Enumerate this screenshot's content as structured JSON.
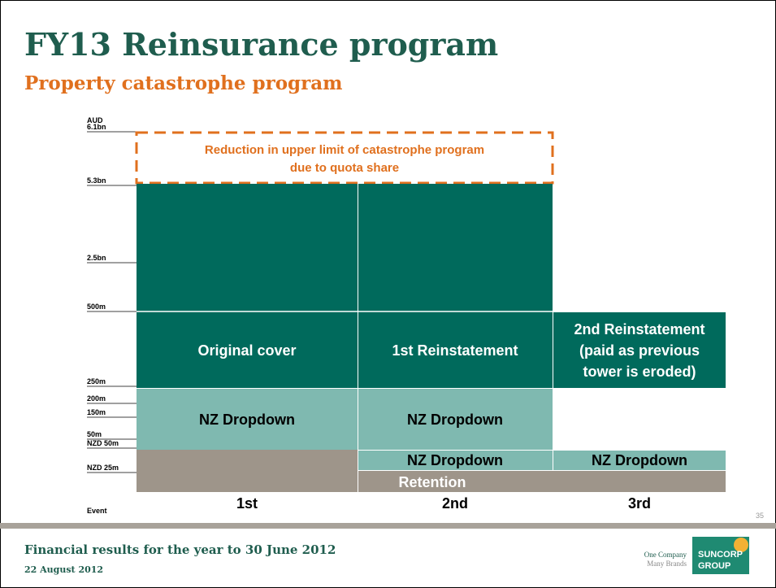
{
  "header": {
    "title": "FY13 Reinsurance program",
    "subtitle": "Property catastrophe program"
  },
  "axis": {
    "unit": "AUD",
    "labels": [
      "6.1bn",
      "5.3bn",
      "2.5bn",
      "500m",
      "250m",
      "200m",
      "150m",
      "50m",
      "NZD 50m",
      "NZD 25m"
    ],
    "event": "Event"
  },
  "callout": {
    "lines": [
      "Reduction in upper limit of catastrophe program",
      "due to quota share"
    ]
  },
  "blocks": {
    "original_cover": "Original cover",
    "first_reinstatement": "1st Reinstatement",
    "second_reinstatement": [
      "2nd Reinstatement",
      "(paid as previous",
      "tower is eroded)"
    ],
    "nz_dropdown": "NZ Dropdown",
    "retention": "Retention"
  },
  "events": [
    "1st",
    "2nd",
    "3rd"
  ],
  "page_number": "35",
  "footer": {
    "title": "Financial results for the year to 30 June 2012",
    "date": "22 August 2012",
    "tagline": [
      "One Company",
      "Many Brands"
    ],
    "brand": [
      "SUNCORP",
      "GROUP"
    ]
  }
}
